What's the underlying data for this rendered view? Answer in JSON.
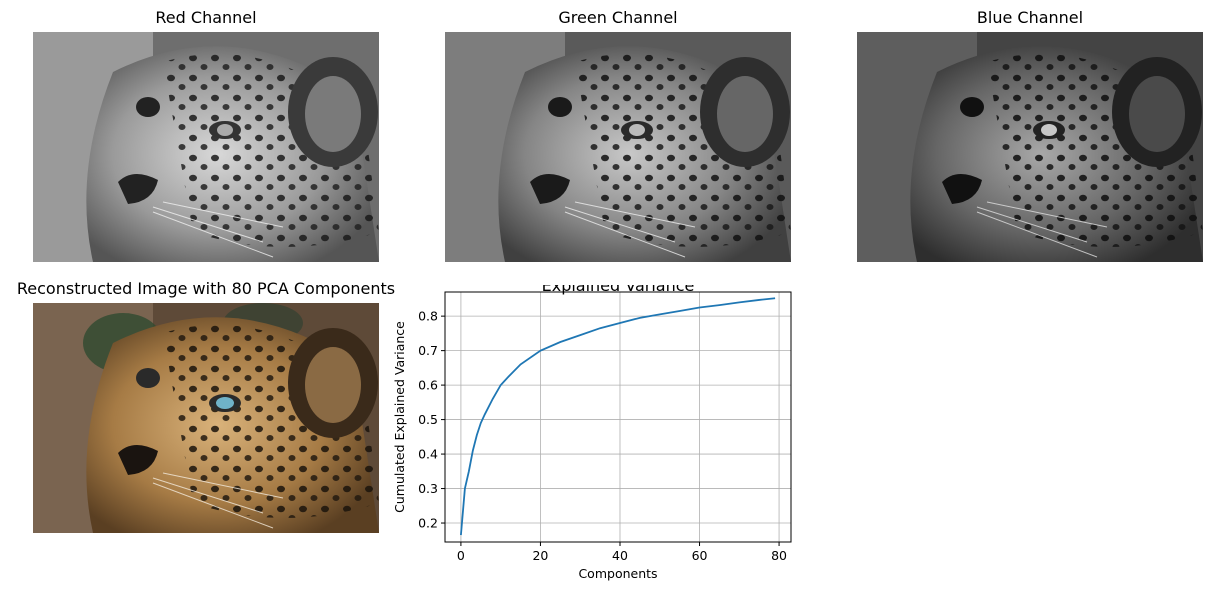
{
  "panels": {
    "red": {
      "title": "Red Channel"
    },
    "green": {
      "title": "Green Channel"
    },
    "blue": {
      "title": "Blue Channel"
    },
    "reconstructed": {
      "title": "Reconstructed Image with 80 PCA Components"
    }
  },
  "chart_data": {
    "type": "line",
    "title": "Explained Variance",
    "xlabel": "Components",
    "ylabel": "Cumulated Explained Variance",
    "xlim": [
      -4,
      83
    ],
    "ylim": [
      0.145,
      0.87
    ],
    "xticks": [
      0,
      20,
      40,
      60,
      80
    ],
    "yticks": [
      0.2,
      0.3,
      0.4,
      0.5,
      0.6,
      0.7,
      0.8
    ],
    "grid": true,
    "series": [
      {
        "color": "#1f77b4",
        "x": [
          0,
          1,
          2,
          3,
          4,
          5,
          6,
          8,
          10,
          12,
          15,
          20,
          25,
          30,
          35,
          40,
          45,
          50,
          55,
          60,
          65,
          70,
          75,
          79
        ],
        "y": [
          0.165,
          0.3,
          0.35,
          0.41,
          0.455,
          0.49,
          0.515,
          0.56,
          0.6,
          0.625,
          0.66,
          0.7,
          0.725,
          0.745,
          0.765,
          0.78,
          0.795,
          0.805,
          0.815,
          0.825,
          0.832,
          0.84,
          0.847,
          0.852
        ]
      }
    ]
  }
}
